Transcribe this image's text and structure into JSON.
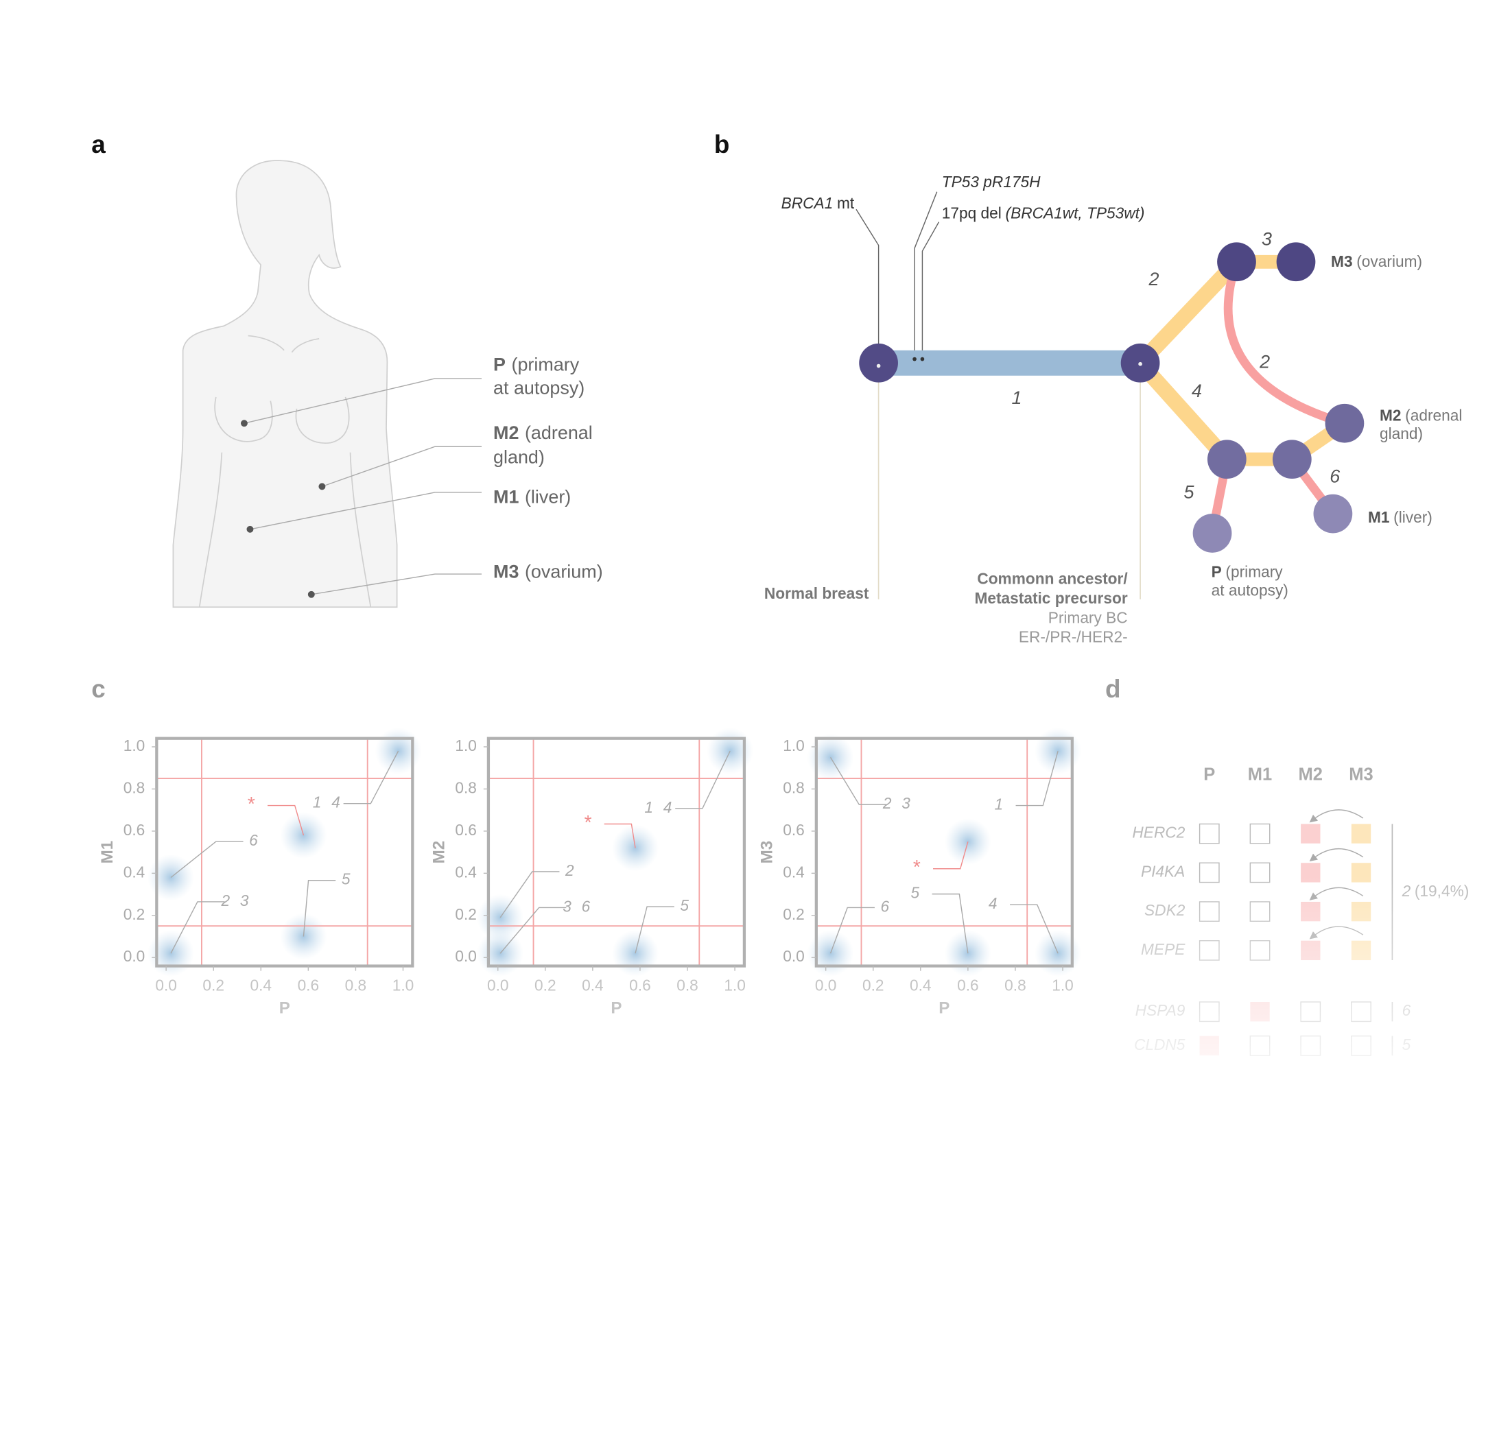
{
  "panel_a": {
    "label": "a",
    "sites": [
      {
        "name": "P",
        "desc": [
          "(primary",
          "at autopsy)"
        ]
      },
      {
        "name": "M2",
        "desc": [
          "(adrenal",
          "gland)"
        ]
      },
      {
        "name": "M1",
        "desc": [
          "(liver)"
        ]
      },
      {
        "name": "M3",
        "desc": [
          "(ovarium)"
        ]
      }
    ]
  },
  "panel_b": {
    "label": "b",
    "mutations": [
      {
        "parts": [
          {
            "text": "BRCA1",
            "italic": true
          },
          {
            "text": "mt"
          }
        ]
      },
      {
        "parts": [
          {
            "text": "TP53 pR175H",
            "italic": true
          }
        ]
      },
      {
        "parts": [
          {
            "text": "17pq del"
          },
          {
            "text": "(BRCA1wt, TP53wt)",
            "italic": true
          }
        ]
      }
    ],
    "nodes": [
      {
        "color": "#524b86",
        "bold": [
          "Normal breast"
        ]
      },
      {
        "color": "#524b86",
        "bold": [
          "Commonn ancestor/",
          "Metastatic precursor"
        ],
        "plain": [
          "Primary BC",
          "ER-/PR-/HER2-"
        ]
      },
      {
        "color": "#4e4783"
      },
      {
        "color": "#4e4783",
        "bold": [
          "M3"
        ],
        "plain": [
          "(ovarium)"
        ]
      },
      {
        "color": "#6f6a9d",
        "bold": [
          "M2"
        ],
        "plain": [
          "(adrenal",
          "gland)"
        ]
      },
      {
        "color": "#726da0"
      },
      {
        "color": "#726da0"
      },
      {
        "color": "#8e89b5",
        "bold": [
          "P"
        ],
        "plain": [
          "(primary",
          "at autopsy)"
        ]
      },
      {
        "color": "#8e89b5",
        "bold": [
          "M1"
        ],
        "plain": [
          "(liver)"
        ]
      }
    ],
    "edges": [
      {
        "label": 1,
        "color": "#9bbad6"
      },
      {
        "label": 2,
        "color": "#fdd68c"
      },
      {
        "label": 3,
        "color": "#fdd68c"
      },
      {
        "label": 2,
        "color": "#f8a0a0"
      },
      {
        "label": 4,
        "color": "#fdd68c"
      },
      {
        "color": "#fdd68c"
      },
      {
        "color": "#fdd68c"
      },
      {
        "label": 5,
        "color": "#f8a0a0"
      },
      {
        "label": 6,
        "color": "#f8a0a0"
      }
    ]
  },
  "panel_c": {
    "label": "c",
    "plots": [
      {
        "type": "scatter",
        "xlabel": "P",
        "ylabel": "M1",
        "xlim": [
          -0.04,
          1.04
        ],
        "ylim": [
          -0.04,
          1.04
        ],
        "xticks": [
          {
            "value": 0,
            "label": "0.0"
          },
          0.2,
          0.4,
          0.6,
          0.8,
          {
            "value": 1,
            "label": "1.0"
          }
        ],
        "yticks": [
          {
            "value": 0,
            "label": "0.0"
          },
          0.2,
          0.4,
          0.6,
          0.8,
          {
            "value": 1,
            "label": "1.0"
          }
        ],
        "threshold_lines": [
          0.15,
          0.85
        ],
        "clusters": [
          {
            "label": "1 4",
            "x": 0.98,
            "y": 0.98
          },
          {
            "label": "*",
            "x": 0.58,
            "y": 0.58,
            "label_color": "#f08c8c"
          },
          {
            "label": "6",
            "x": 0.02,
            "y": 0.38
          },
          {
            "label": "2 3",
            "x": 0.02,
            "y": 0.02
          },
          {
            "label": "5",
            "x": 0.58,
            "y": 0.1
          }
        ]
      },
      {
        "type": "scatter",
        "xlabel": "P",
        "ylabel": "M2",
        "xlim": [
          -0.04,
          1.04
        ],
        "ylim": [
          -0.04,
          1.04
        ],
        "xticks": [
          {
            "value": 0,
            "label": "0.0"
          },
          0.2,
          0.4,
          0.6,
          0.8,
          {
            "value": 1,
            "label": "1.0"
          }
        ],
        "yticks": [
          {
            "value": 0,
            "label": "0.0"
          },
          0.2,
          0.4,
          0.6,
          0.8,
          {
            "value": 1,
            "label": "1.0"
          }
        ],
        "threshold_lines": [
          0.15,
          0.85
        ],
        "clusters": [
          {
            "label": "1 4",
            "x": 0.98,
            "y": 0.98
          },
          {
            "label": "*",
            "x": 0.58,
            "y": 0.52,
            "label_color": "#f08c8c"
          },
          {
            "label": "2",
            "x": 0.01,
            "y": 0.19
          },
          {
            "label": "3 6",
            "x": 0.01,
            "y": 0.02
          },
          {
            "label": "5",
            "x": 0.58,
            "y": 0.02
          }
        ]
      },
      {
        "type": "scatter",
        "xlabel": "P",
        "ylabel": "M3",
        "xlim": [
          -0.04,
          1.04
        ],
        "ylim": [
          -0.04,
          1.04
        ],
        "xticks": [
          {
            "value": 0,
            "label": "0.0"
          },
          0.2,
          0.4,
          0.6,
          0.8,
          {
            "value": 1,
            "label": "1.0"
          }
        ],
        "yticks": [
          {
            "value": 0,
            "label": "0.0"
          },
          0.2,
          0.4,
          0.6,
          0.8,
          {
            "value": 1,
            "label": "1.0"
          }
        ],
        "threshold_lines": [
          0.15,
          0.85
        ],
        "clusters": [
          {
            "label": "2 3",
            "x": 0.02,
            "y": 0.95
          },
          {
            "label": "1",
            "x": 0.98,
            "y": 0.98
          },
          {
            "label": "*",
            "x": 0.6,
            "y": 0.55,
            "label_color": "#f08c8c"
          },
          {
            "label": "5",
            "x": 0.6,
            "y": 0.02
          },
          {
            "label": "6",
            "x": 0.02,
            "y": 0.02
          },
          {
            "label": "4",
            "x": 0.98,
            "y": 0.02
          }
        ]
      }
    ]
  },
  "panel_d": {
    "label": "d",
    "columns": [
      "P",
      "M1",
      "M2",
      "M3"
    ],
    "groups": [
      {
        "transfer_arrows": true,
        "count": 2,
        "percent": "(19,4%)",
        "rows": [
          {
            "gene": "HERC2",
            "cells": [
              null,
              null,
              "#fbd0d0",
              "#fde6bb"
            ]
          },
          {
            "gene": "PI4KA",
            "cells": [
              null,
              null,
              "#fbd0d0",
              "#fde6bb"
            ]
          },
          {
            "gene": "SDK2",
            "cells": [
              null,
              null,
              "#fbd0d0",
              "#fde6bb"
            ]
          },
          {
            "gene": "MEPE",
            "cells": [
              null,
              null,
              "#fbd0d0",
              "#fde6bb"
            ]
          }
        ]
      },
      {
        "count": 6,
        "rows": [
          {
            "gene": "HSPA9",
            "cells": [
              null,
              "#fbd0d0",
              null,
              null
            ]
          }
        ]
      },
      {
        "count": 5,
        "rows": [
          {
            "gene": "CLDN5",
            "cells": [
              "#fbd0d0",
              null,
              null,
              null
            ]
          }
        ]
      }
    ]
  }
}
